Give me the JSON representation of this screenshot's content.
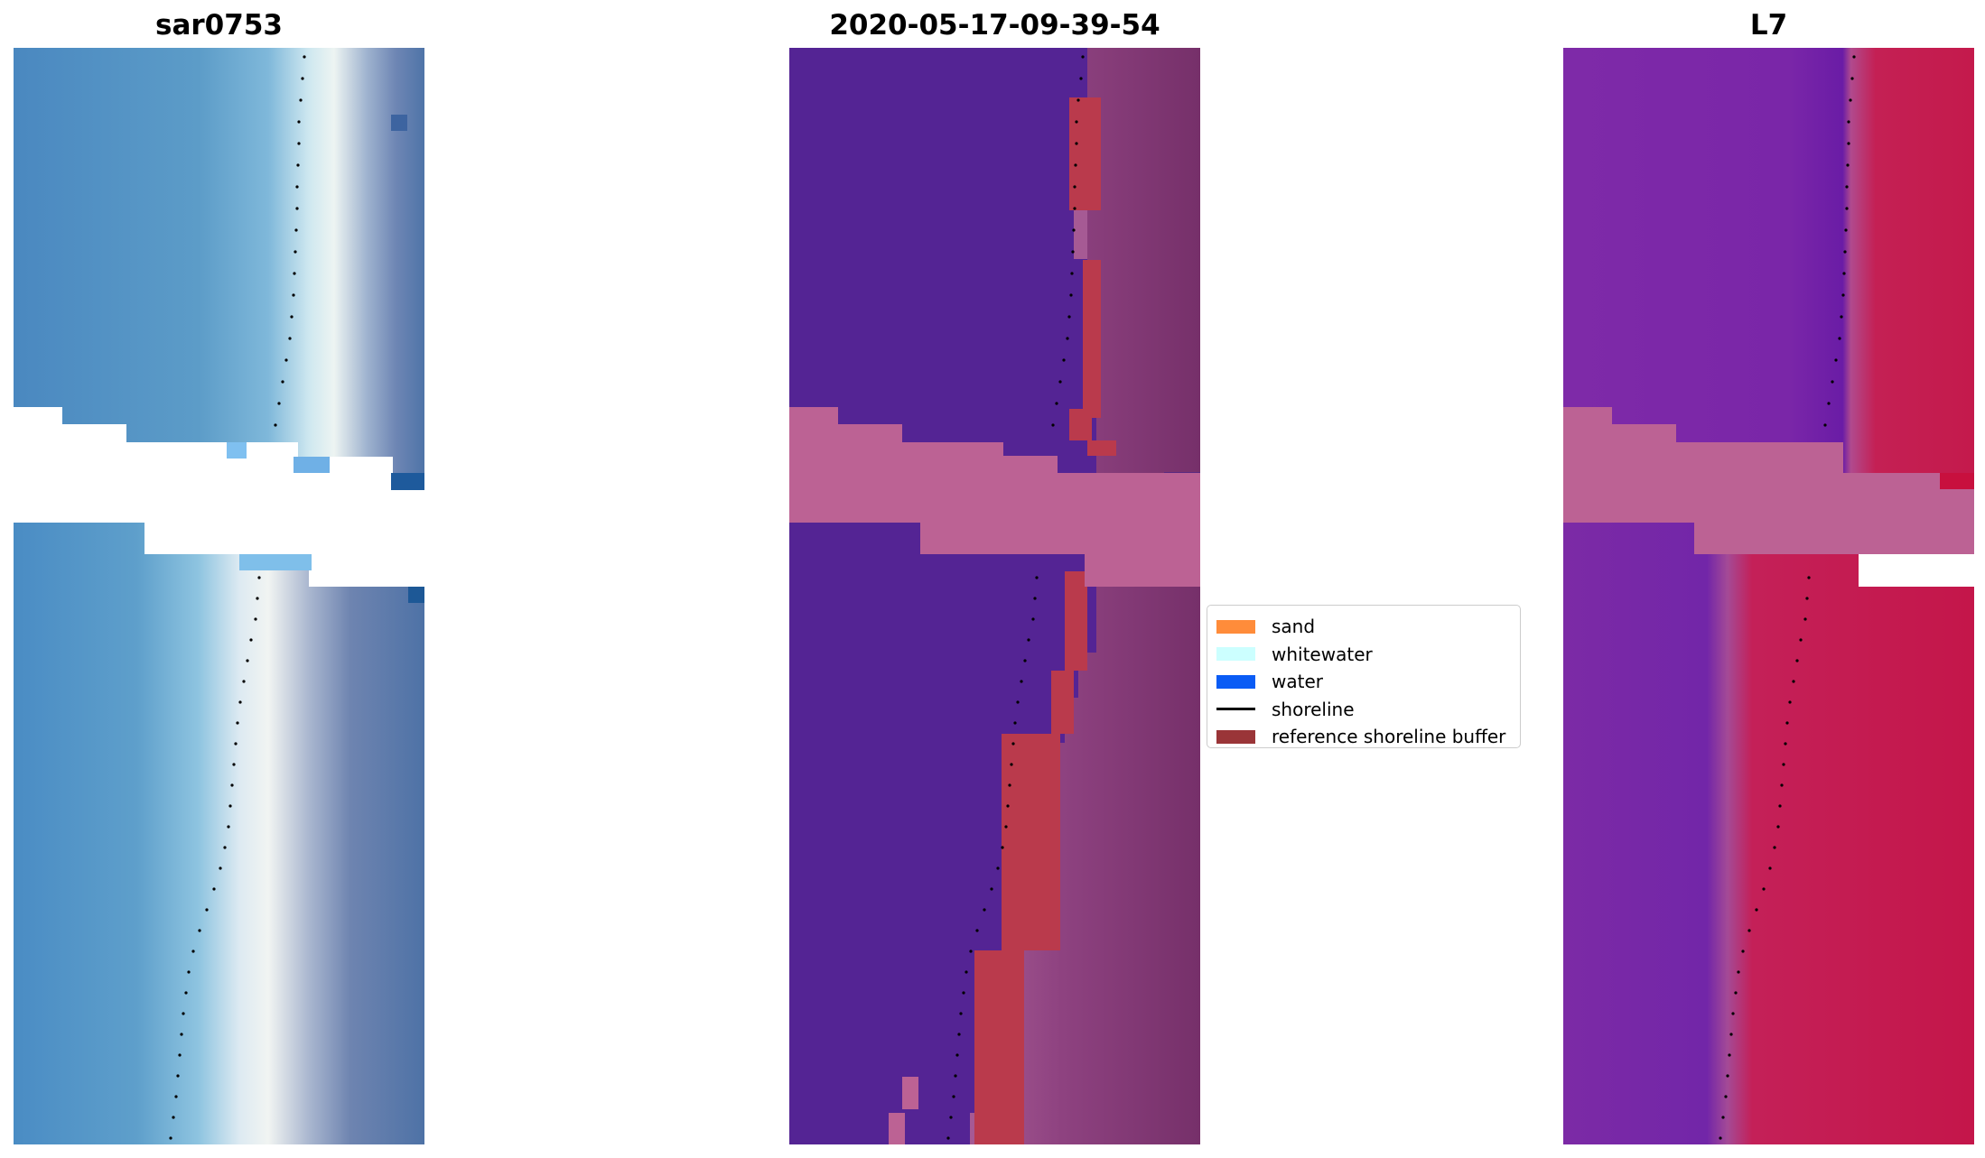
{
  "titles": {
    "rgb": "sar0753",
    "classified": "2020-05-17-09-39-54",
    "index": "L7"
  },
  "legend": {
    "items": [
      {
        "label": "sand",
        "kind": "swatch",
        "color": "#FF8C3A"
      },
      {
        "label": "whitewater",
        "kind": "swatch",
        "color": "#CCFFFF"
      },
      {
        "label": "water",
        "kind": "swatch",
        "color": "#0A5CF5"
      },
      {
        "label": "shoreline",
        "kind": "line",
        "color": "#000000"
      },
      {
        "label": "reference shoreline buffer",
        "kind": "swatch",
        "color": "#9A3538"
      }
    ]
  },
  "colors": {
    "rgb_sea": "#4E8CC2",
    "rgb_foam": "#E8F2F6",
    "rgb_land": "#4F74A8",
    "class_water": "#542494",
    "class_buffer": "#BA3A4C",
    "class_land": "#7E3470",
    "class_cloud": "#BC6294",
    "index_water": "#7A26A6",
    "index_land": "#C21A4E",
    "index_cloud": "#BC6294",
    "shoreline": "#000000"
  }
}
